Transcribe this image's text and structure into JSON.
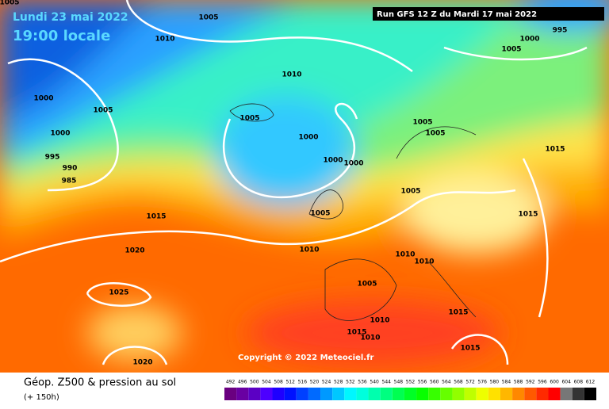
{
  "header": {
    "date": "Lundi 23 mai 2022",
    "time": "19:00 locale",
    "run": "Run GFS 12 Z du Mardi 17 mai 2022"
  },
  "copyright": "Copyright © 2022 Meteociel.fr",
  "isobar_labels": [
    1005,
    1010,
    1005,
    1000,
    995,
    1010,
    1000,
    1005,
    1005,
    1000,
    1005,
    1005,
    1000,
    995,
    990,
    985,
    1000,
    1000,
    1015,
    1005,
    1015,
    1005,
    1015,
    1020,
    1010,
    1010,
    1010,
    1005,
    1025,
    1015,
    1010,
    1015,
    1010,
    1015,
    1020,
    1005
  ],
  "legend": {
    "title": "Géop. Z500 & pression au sol",
    "lead": "(+ 150h)",
    "scale": [
      492,
      496,
      500,
      504,
      508,
      512,
      516,
      520,
      524,
      528,
      532,
      536,
      540,
      544,
      548,
      552,
      556,
      560,
      564,
      568,
      572,
      576,
      580,
      584,
      588,
      592,
      596,
      600,
      604,
      608,
      612
    ]
  }
}
